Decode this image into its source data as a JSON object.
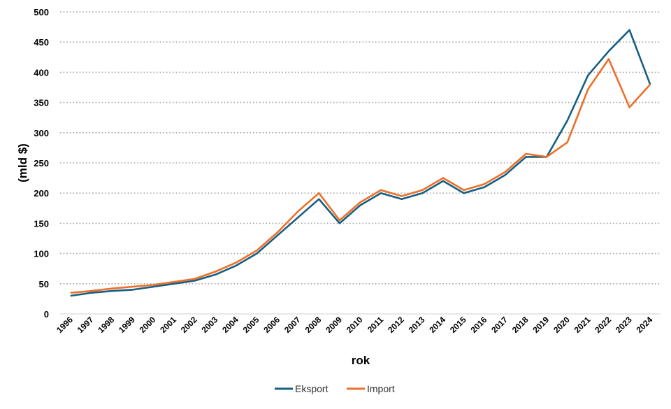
{
  "chart_data": {
    "type": "line",
    "title": "",
    "xlabel": "rok",
    "ylabel": "(mld $)",
    "ylim": [
      0,
      500
    ],
    "yticks": [
      0,
      50,
      100,
      150,
      200,
      250,
      300,
      350,
      400,
      450,
      500
    ],
    "grid": true,
    "legend_position": "bottom",
    "categories": [
      "1996",
      "1997",
      "1998",
      "1999",
      "2000",
      "2001",
      "2002",
      "2003",
      "2004",
      "2005",
      "2006",
      "2007",
      "2008",
      "2009",
      "2010",
      "2011",
      "2012",
      "2013",
      "2014",
      "2015",
      "2016",
      "2017",
      "2018",
      "2019",
      "2020",
      "2021",
      "2022",
      "2023",
      "2024"
    ],
    "series": [
      {
        "name": "Eksport",
        "color": "#155f80",
        "values": [
          30,
          35,
          38,
          40,
          45,
          50,
          55,
          65,
          80,
          100,
          130,
          160,
          190,
          150,
          180,
          200,
          190,
          200,
          220,
          200,
          210,
          230,
          260,
          260,
          320,
          395,
          435,
          470,
          380
        ]
      },
      {
        "name": "Import",
        "color": "#ee6f2a",
        "values": [
          35,
          38,
          42,
          45,
          48,
          53,
          58,
          70,
          85,
          105,
          135,
          170,
          200,
          155,
          185,
          205,
          195,
          205,
          225,
          205,
          215,
          235,
          265,
          260,
          284,
          372,
          422,
          342,
          380
        ]
      }
    ]
  }
}
